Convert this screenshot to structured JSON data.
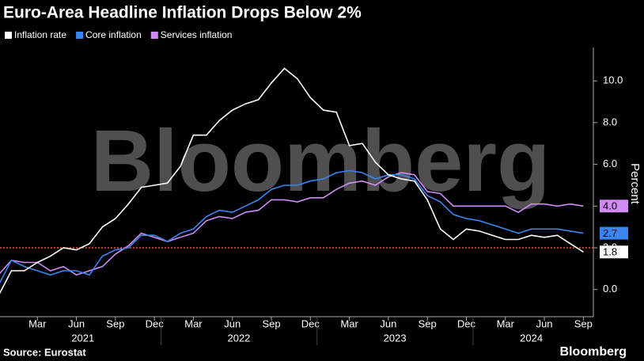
{
  "chart_data": {
    "type": "line",
    "title": "Euro-Area Headline Inflation Drops Below 2%",
    "watermark": "Bloomberg",
    "y_label": "Percent",
    "source": "Source: Eurostat",
    "brand": "Bloomberg",
    "categories": [
      null,
      null,
      null,
      "Mar",
      null,
      null,
      "Jun",
      null,
      null,
      "Sep",
      null,
      null,
      "Dec",
      null,
      null,
      "Mar",
      null,
      null,
      "Jun",
      null,
      null,
      "Sep",
      null,
      null,
      "Dec",
      null,
      null,
      "Mar",
      null,
      null,
      "Jun",
      null,
      null,
      "Sep",
      null,
      null,
      "Dec",
      null,
      null,
      "Mar",
      null,
      null,
      "Jun",
      null,
      null,
      "Sep"
    ],
    "year_labels": [
      "2021",
      "2022",
      "2023",
      "2024"
    ],
    "ylim": [
      -1.3,
      11.6
    ],
    "yticks": [
      {
        "value": 0,
        "label": "0.0"
      },
      {
        "value": 2,
        "label": "2.0"
      },
      {
        "value": 4,
        "label": "4.0"
      },
      {
        "value": 6,
        "label": "6.0"
      },
      {
        "value": 8,
        "label": "8.0"
      },
      {
        "value": 10,
        "label": "10.0"
      }
    ],
    "reference_line": {
      "value": 2,
      "color": "#e8583a"
    },
    "series": [
      {
        "name": "Inflation rate",
        "color": "#ffffff",
        "end_label": "1.8",
        "values": [
          -0.3,
          0.9,
          0.9,
          1.3,
          1.6,
          2.0,
          1.9,
          2.2,
          3.0,
          3.4,
          4.1,
          4.9,
          5.0,
          5.1,
          5.9,
          7.4,
          7.4,
          8.1,
          8.6,
          8.9,
          9.1,
          9.9,
          10.6,
          10.1,
          9.2,
          8.6,
          8.5,
          6.9,
          7.0,
          6.1,
          5.5,
          5.3,
          5.2,
          4.3,
          2.9,
          2.4,
          2.9,
          2.8,
          2.6,
          2.4,
          2.4,
          2.6,
          2.5,
          2.6,
          2.2,
          1.8
        ]
      },
      {
        "name": "Core inflation",
        "color": "#3a86f0",
        "end_label": "2.7",
        "values": [
          0.2,
          1.4,
          1.1,
          0.9,
          0.7,
          0.9,
          0.9,
          0.7,
          1.6,
          1.9,
          2.0,
          2.6,
          2.6,
          2.3,
          2.7,
          2.9,
          3.5,
          3.8,
          3.7,
          4.0,
          4.3,
          4.8,
          5.0,
          5.0,
          5.2,
          5.3,
          5.6,
          5.7,
          5.6,
          5.3,
          5.5,
          5.5,
          5.3,
          4.5,
          4.2,
          3.6,
          3.4,
          3.3,
          3.1,
          2.9,
          2.7,
          2.9,
          2.9,
          2.9,
          2.8,
          2.7
        ]
      },
      {
        "name": "Services inflation",
        "color": "#d08cf5",
        "end_label": "4.0",
        "values": [
          0.7,
          1.4,
          1.3,
          1.3,
          0.9,
          1.1,
          0.7,
          0.9,
          1.1,
          1.7,
          2.1,
          2.7,
          2.5,
          2.3,
          2.5,
          2.7,
          3.3,
          3.5,
          3.4,
          3.7,
          3.8,
          4.3,
          4.3,
          4.2,
          4.4,
          4.4,
          4.8,
          5.1,
          5.2,
          5.0,
          5.4,
          5.6,
          5.5,
          4.7,
          4.6,
          4.0,
          4.0,
          4.0,
          4.0,
          4.0,
          3.7,
          4.1,
          4.1,
          4.0,
          4.1,
          4.0
        ]
      }
    ]
  }
}
